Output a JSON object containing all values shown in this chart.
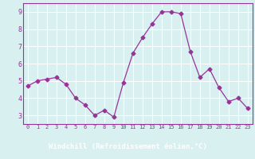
{
  "x": [
    0,
    1,
    2,
    3,
    4,
    5,
    6,
    7,
    8,
    9,
    10,
    11,
    12,
    13,
    14,
    15,
    16,
    17,
    18,
    19,
    20,
    21,
    22,
    23
  ],
  "y": [
    4.7,
    5.0,
    5.1,
    5.2,
    4.8,
    4.0,
    3.6,
    3.0,
    3.3,
    2.9,
    4.9,
    6.6,
    7.5,
    8.3,
    9.0,
    9.0,
    8.9,
    6.7,
    5.2,
    5.7,
    4.6,
    3.8,
    4.0,
    3.4
  ],
  "line_color": "#993399",
  "marker": "D",
  "marker_size": 2.5,
  "bg_color": "#d8f0f0",
  "grid_color": "#ffffff",
  "axis_color": "#993399",
  "band_color": "#993399",
  "xlabel": "Windchill (Refroidissement éolien,°C)",
  "ylim": [
    2.5,
    9.5
  ],
  "xlim": [
    -0.5,
    23.5
  ],
  "yticks": [
    3,
    4,
    5,
    6,
    7,
    8,
    9
  ],
  "xticks": [
    0,
    1,
    2,
    3,
    4,
    5,
    6,
    7,
    8,
    9,
    10,
    11,
    12,
    13,
    14,
    15,
    16,
    17,
    18,
    19,
    20,
    21,
    22,
    23
  ]
}
